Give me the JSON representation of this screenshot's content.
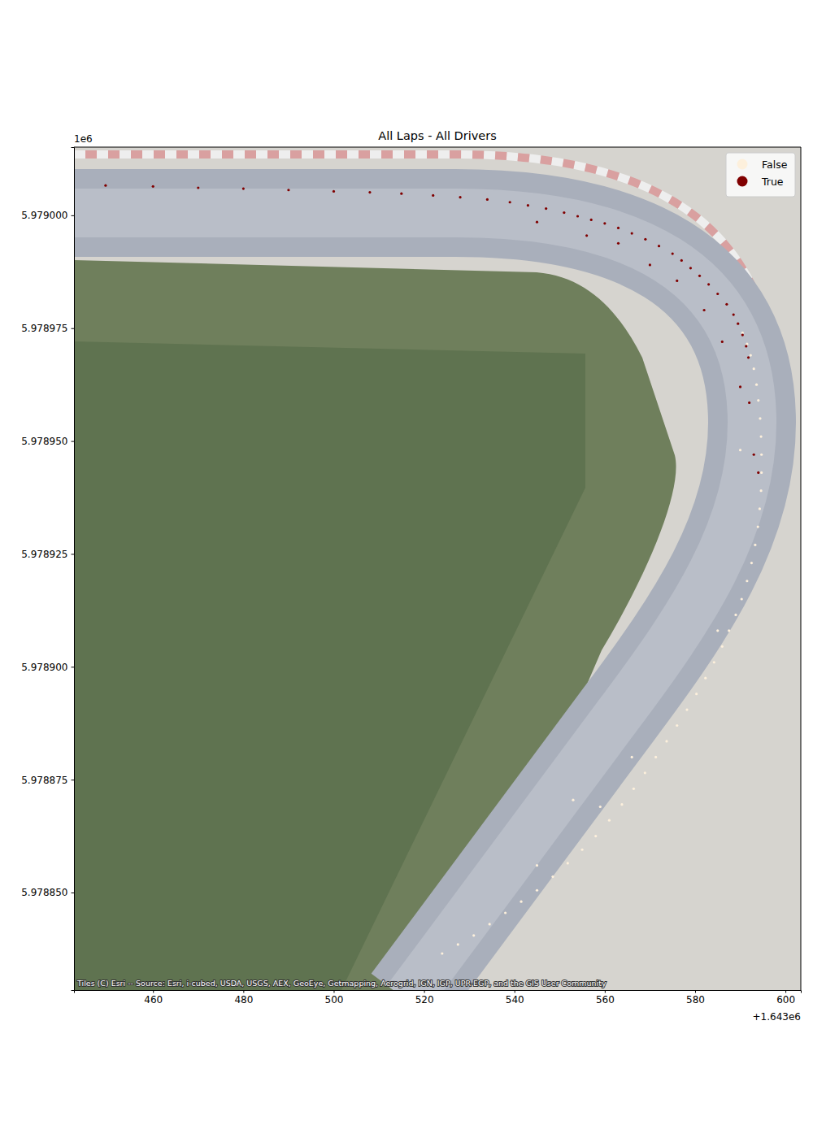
{
  "chart_data": {
    "type": "scatter",
    "title": "All Laps - All Drivers",
    "x_offset_text": "+1.643e6",
    "y_offset_text": "1e6",
    "attribution": "Tiles (C) Esri -- Source: Esri, i-cubed, USDA, USGS, AEX, GeoEye, Getmapping, Aerogrid, IGN, IGP, UPR-EGP, and the GIS User Community",
    "legend": "upper right",
    "marker": "circle",
    "xlim": [
      1643442.5,
      1643603.4
    ],
    "ylim": [
      5978828.4,
      5979015.1
    ],
    "xticks": [
      {
        "value": 1643460,
        "label": "460"
      },
      {
        "value": 1643480,
        "label": "480"
      },
      {
        "value": 1643500,
        "label": "500"
      },
      {
        "value": 1643520,
        "label": "520"
      },
      {
        "value": 1643540,
        "label": "540"
      },
      {
        "value": 1643560,
        "label": "560"
      },
      {
        "value": 1643580,
        "label": "580"
      },
      {
        "value": 1643600,
        "label": "600"
      }
    ],
    "yticks": [
      {
        "value": 5978850,
        "label": "5.978850"
      },
      {
        "value": 5978875,
        "label": "5.978875"
      },
      {
        "value": 5978900,
        "label": "5.978900"
      },
      {
        "value": 5978925,
        "label": "5.978925"
      },
      {
        "value": 5978950,
        "label": "5.978950"
      },
      {
        "value": 5978975,
        "label": "5.978975"
      },
      {
        "value": 5979000,
        "label": "5.979000"
      }
    ],
    "series": [
      {
        "name": "False",
        "color": "#fdf0dc",
        "x": [
          1643590.5,
          1643591.5,
          1643592.3,
          1643593.0,
          1643593.6,
          1643594.0,
          1643594.4,
          1643594.6,
          1643594.7,
          1643594.7,
          1643594.6,
          1643594.3,
          1643593.9,
          1643593.3,
          1643592.5,
          1643591.5,
          1643590.3,
          1643589.0,
          1643587.5,
          1643586.0,
          1643584.2,
          1643582.3,
          1643580.3,
          1643578.2,
          1643576.0,
          1643573.7,
          1643571.3,
          1643568.9,
          1643566.4,
          1643563.8,
          1643561.0,
          1643558.0,
          1643555.0,
          1643551.8,
          1643548.5,
          1643545.0,
          1643541.5,
          1643538.0,
          1643534.5,
          1643531.0,
          1643527.5,
          1643524.0,
          1643566.0,
          1643559.0,
          1643553.0,
          1643545.0,
          1643585.0,
          1643590.0
        ],
        "values": [
          5978974.0,
          5978971.5,
          5978969.0,
          5978966.0,
          5978962.5,
          5978959.0,
          5978955.0,
          5978951.0,
          5978947.0,
          5978943.0,
          5978939.0,
          5978935.0,
          5978931.0,
          5978927.0,
          5978923.0,
          5978919.0,
          5978915.0,
          5978911.5,
          5978908.0,
          5978904.5,
          5978901.0,
          5978897.5,
          5978894.0,
          5978890.5,
          5978887.0,
          5978883.5,
          5978880.0,
          5978876.5,
          5978873.0,
          5978869.5,
          5978866.0,
          5978862.5,
          5978859.5,
          5978856.5,
          5978853.5,
          5978850.5,
          5978848.0,
          5978845.5,
          5978843.0,
          5978840.5,
          5978838.5,
          5978836.5,
          5978880.0,
          5978869.0,
          5978870.5,
          5978856.0,
          5978908.0,
          5978948.0
        ]
      },
      {
        "name": "True",
        "color": "#800000",
        "x": [
          1643449.5,
          1643460.0,
          1643470.0,
          1643480.0,
          1643490.0,
          1643500.0,
          1643508.0,
          1643515.0,
          1643522.0,
          1643528.0,
          1643534.0,
          1643539.0,
          1643543.0,
          1643547.0,
          1643551.0,
          1643554.0,
          1643557.0,
          1643560.0,
          1643563.0,
          1643566.0,
          1643569.0,
          1643572.0,
          1643575.0,
          1643577.0,
          1643579.0,
          1643581.0,
          1643583.0,
          1643585.0,
          1643587.0,
          1643588.5,
          1643589.5,
          1643590.5,
          1643591.3,
          1643591.8,
          1643545.0,
          1643556.0,
          1643563.0,
          1643570.0,
          1643576.0,
          1643582.0,
          1643586.0,
          1643590.0,
          1643592.0,
          1643593.0,
          1643594.0
        ],
        "values": [
          5979006.6,
          5979006.4,
          5979006.1,
          5979005.9,
          5979005.6,
          5979005.3,
          5979005.1,
          5979004.8,
          5979004.4,
          5979004.0,
          5979003.5,
          5979002.9,
          5979002.2,
          5979001.5,
          5979000.6,
          5978999.8,
          5978999.0,
          5978998.2,
          5978997.2,
          5978996.0,
          5978994.7,
          5978993.2,
          5978991.5,
          5978990.0,
          5978988.3,
          5978986.6,
          5978984.7,
          5978982.6,
          5978980.3,
          5978978.0,
          5978976.0,
          5978973.5,
          5978971.0,
          5978968.5,
          5978998.5,
          5978995.5,
          5978993.8,
          5978989.0,
          5978985.5,
          5978979.0,
          5978972.0,
          5978962.0,
          5978958.5,
          5978947.0,
          5978943.0
        ]
      }
    ]
  }
}
